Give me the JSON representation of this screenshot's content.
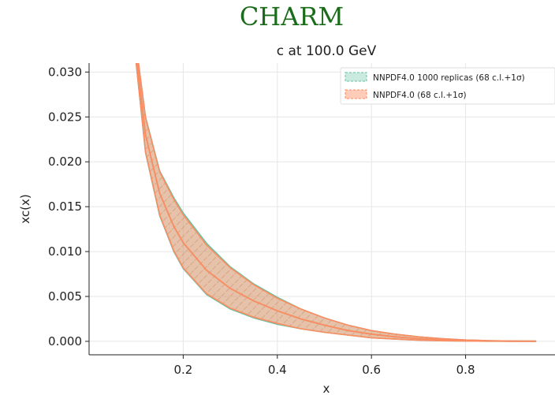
{
  "page": {
    "heading": "CHARM"
  },
  "chart_data": {
    "type": "area",
    "title": "c at 100.0 GeV",
    "xlabel": "x",
    "ylabel": "xc(x)",
    "xlim": [
      0.0,
      0.99
    ],
    "ylim": [
      -0.0015,
      0.031
    ],
    "x_ticks": [
      0.2,
      0.4,
      0.6,
      0.8
    ],
    "x_tick_labels": [
      "0.2",
      "0.4",
      "0.6",
      "0.8"
    ],
    "y_ticks": [
      0.0,
      0.005,
      0.01,
      0.015,
      0.02,
      0.025,
      0.03
    ],
    "y_tick_labels": [
      "0.000",
      "0.005",
      "0.010",
      "0.015",
      "0.020",
      "0.025",
      "0.030"
    ],
    "grid": true,
    "legend_position": "top-right",
    "series": [
      {
        "name": "NNPDF4.0 1000 replicas (68 c.l.+1σ)",
        "color": "#66c2a5",
        "hatch": "dashed",
        "x": [
          0.1,
          0.12,
          0.15,
          0.18,
          0.2,
          0.25,
          0.3,
          0.35,
          0.4,
          0.45,
          0.5,
          0.55,
          0.6,
          0.65,
          0.7,
          0.75,
          0.8,
          0.85,
          0.9,
          0.95
        ],
        "central": [
          0.032,
          0.023,
          0.0165,
          0.0128,
          0.011,
          0.0079,
          0.0059,
          0.0045,
          0.0034,
          0.0025,
          0.0018,
          0.0012,
          0.0008,
          0.0005,
          0.0003,
          0.00017,
          8e-05,
          4e-05,
          2e-05,
          1e-05
        ],
        "upper": [
          0.033,
          0.025,
          0.019,
          0.016,
          0.0143,
          0.0109,
          0.0083,
          0.0064,
          0.0049,
          0.0036,
          0.0026,
          0.0018,
          0.0012,
          0.0008,
          0.0005,
          0.0003,
          0.00015,
          8e-05,
          4e-05,
          2e-05
        ],
        "lower": [
          0.031,
          0.021,
          0.014,
          0.01,
          0.0081,
          0.0052,
          0.0036,
          0.0026,
          0.0019,
          0.0014,
          0.001,
          0.0007,
          0.0004,
          0.00025,
          0.00013,
          6e-05,
          3e-05,
          1e-05,
          0.0,
          0.0
        ]
      },
      {
        "name": "NNPDF4.0 (68 c.l.+1σ)",
        "color": "#fc8d62",
        "hatch": "dashed",
        "x": [
          0.1,
          0.12,
          0.15,
          0.18,
          0.2,
          0.25,
          0.3,
          0.35,
          0.4,
          0.45,
          0.5,
          0.55,
          0.6,
          0.65,
          0.7,
          0.75,
          0.8,
          0.85,
          0.9,
          0.95
        ],
        "central": [
          0.032,
          0.023,
          0.0165,
          0.0128,
          0.011,
          0.0079,
          0.0059,
          0.0045,
          0.0034,
          0.0025,
          0.0018,
          0.0012,
          0.0008,
          0.0005,
          0.0003,
          0.00017,
          8e-05,
          4e-05,
          2e-05,
          1e-05
        ],
        "upper": [
          0.033,
          0.0249,
          0.0189,
          0.0158,
          0.0141,
          0.0107,
          0.0082,
          0.0063,
          0.0048,
          0.0036,
          0.0026,
          0.0018,
          0.0012,
          0.0008,
          0.0005,
          0.0003,
          0.00015,
          8e-05,
          4e-05,
          2e-05
        ],
        "lower": [
          0.031,
          0.0211,
          0.0141,
          0.0101,
          0.0082,
          0.0053,
          0.0037,
          0.0027,
          0.002,
          0.0014,
          0.001,
          0.0007,
          0.0004,
          0.00025,
          0.00013,
          6e-05,
          3e-05,
          1e-05,
          0.0,
          0.0
        ]
      }
    ]
  }
}
